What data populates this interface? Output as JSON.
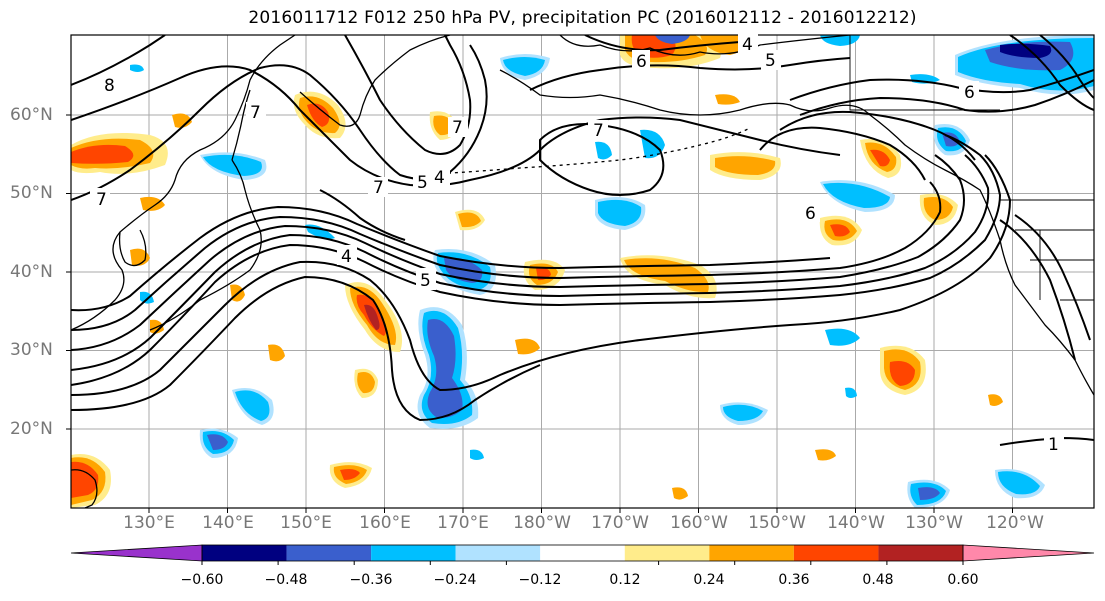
{
  "title": "2016011712 F012 250 hPa PV, precipitation PC (2016012112 - 2016012212)",
  "lat_ticks": [
    {
      "label": "60°N",
      "value": 60
    },
    {
      "label": "50°N",
      "value": 50
    },
    {
      "label": "40°N",
      "value": 40
    },
    {
      "label": "30°N",
      "value": 30
    },
    {
      "label": "20°N",
      "value": 20
    }
  ],
  "lon_ticks": [
    {
      "label": "130°E",
      "value": 130
    },
    {
      "label": "140°E",
      "value": 140
    },
    {
      "label": "150°E",
      "value": 150
    },
    {
      "label": "160°E",
      "value": 160
    },
    {
      "label": "170°E",
      "value": 170
    },
    {
      "label": "180°W",
      "value": 180
    },
    {
      "label": "170°W",
      "value": 190
    },
    {
      "label": "160°W",
      "value": 200
    },
    {
      "label": "150°W",
      "value": 210
    },
    {
      "label": "140°W",
      "value": 220
    },
    {
      "label": "130°W",
      "value": 230
    },
    {
      "label": "120°W",
      "value": 240
    }
  ],
  "colorbar": {
    "colors": [
      "#9932cc",
      "#000080",
      "#3a5fcd",
      "#00bfff",
      "#b0e2ff",
      "#ffffff",
      "#ffec8b",
      "#ffa500",
      "#ff4500",
      "#b22222",
      "#ff88aa"
    ],
    "tick_labels": [
      "−0.60",
      "−0.48",
      "−0.36",
      "−0.24",
      "−0.12",
      "0.12",
      "0.24",
      "0.36",
      "0.48",
      "0.60"
    ],
    "tick_values": [
      -0.6,
      -0.48,
      -0.36,
      -0.24,
      -0.12,
      0.12,
      0.24,
      0.36,
      0.48,
      0.6
    ]
  },
  "contour_labels": [
    "8",
    "7",
    "7",
    "7",
    "7",
    "5",
    "4",
    "4",
    "5",
    "6",
    "6",
    "7",
    "4",
    "5",
    "6",
    "1"
  ]
}
